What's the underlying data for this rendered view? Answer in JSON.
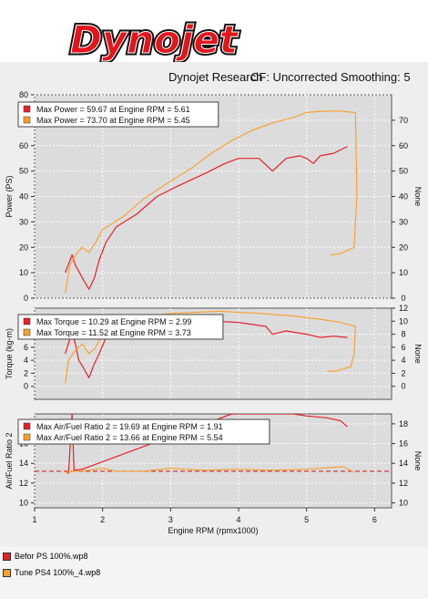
{
  "header": {
    "logo_text": "Dynojet",
    "subtitle_left": "Dynojet Research",
    "subtitle_right": "CF: Uncorrected Smoothing: 5"
  },
  "colors": {
    "red": "#e4202a",
    "orange": "#f7a233",
    "logo_red": "#e3151b"
  },
  "files": [
    {
      "label": "Befor PS 100%.wp8",
      "color": "#e4202a"
    },
    {
      "label": "Tune PS4 100%_4.wp8",
      "color": "#f7a233"
    }
  ],
  "x_axis": {
    "label": "Engine RPM (rpmx1000)",
    "ticks": [
      "1",
      "2",
      "3",
      "4",
      "5",
      "6"
    ],
    "range": [
      1,
      6.25
    ]
  },
  "chart_data": [
    {
      "type": "line",
      "panel": "power",
      "ylabel": "Power (PS)",
      "y2label": "None",
      "ylim": [
        0,
        80
      ],
      "yticks": [
        0,
        10,
        20,
        30,
        40,
        50,
        60,
        70,
        80
      ],
      "y2ticks": [
        0,
        10,
        20,
        30,
        40,
        50,
        60,
        70
      ],
      "legend": [
        "Max Power = 59.67 at Engine RPM = 5.61",
        "Max Power = 73.70 at Engine RPM = 5.45"
      ],
      "series": [
        {
          "color": "red",
          "points": [
            [
              1.45,
              10
            ],
            [
              1.55,
              17
            ],
            [
              1.6,
              13
            ],
            [
              1.7,
              8
            ],
            [
              1.8,
              3.5
            ],
            [
              1.88,
              8
            ],
            [
              1.95,
              15
            ],
            [
              2.05,
              22
            ],
            [
              2.2,
              28
            ],
            [
              2.5,
              33
            ],
            [
              2.8,
              40
            ],
            [
              3.1,
              44
            ],
            [
              3.5,
              49
            ],
            [
              3.8,
              53
            ],
            [
              4.0,
              55
            ],
            [
              4.3,
              55
            ],
            [
              4.5,
              50
            ],
            [
              4.7,
              55
            ],
            [
              4.9,
              56
            ],
            [
              5.0,
              55
            ],
            [
              5.1,
              53
            ],
            [
              5.2,
              56
            ],
            [
              5.4,
              57
            ],
            [
              5.6,
              59.7
            ]
          ]
        },
        {
          "color": "orange",
          "points": [
            [
              1.45,
              2
            ],
            [
              1.52,
              13
            ],
            [
              1.6,
              17
            ],
            [
              1.7,
              20
            ],
            [
              1.8,
              18
            ],
            [
              1.9,
              22
            ],
            [
              2.0,
              27
            ],
            [
              2.3,
              32
            ],
            [
              2.6,
              39
            ],
            [
              3.0,
              46
            ],
            [
              3.3,
              51
            ],
            [
              3.6,
              57
            ],
            [
              3.9,
              62
            ],
            [
              4.2,
              66
            ],
            [
              4.5,
              69
            ],
            [
              4.8,
              71
            ],
            [
              5.0,
              73
            ],
            [
              5.2,
              73.5
            ],
            [
              5.45,
              73.7
            ],
            [
              5.72,
              73
            ],
            [
              5.74,
              40
            ],
            [
              5.7,
              20
            ],
            [
              5.5,
              17.5
            ],
            [
              5.35,
              17
            ]
          ]
        }
      ]
    },
    {
      "type": "line",
      "panel": "torque",
      "ylabel": "Torque (kg-m)",
      "y2label": "None",
      "ylim": [
        -2,
        12
      ],
      "yticks": [
        0,
        2,
        4,
        6,
        8
      ],
      "y2ticks": [
        0,
        2,
        4,
        6,
        8,
        10,
        12
      ],
      "legend": [
        "Max Torque = 10.29 at Engine RPM = 2.99",
        "Max Torque = 11.52 at Engine RPM = 3.73"
      ],
      "series": [
        {
          "color": "red",
          "points": [
            [
              1.45,
              5
            ],
            [
              1.55,
              8.3
            ],
            [
              1.6,
              6.5
            ],
            [
              1.65,
              4
            ],
            [
              1.72,
              2.8
            ],
            [
              1.8,
              1.3
            ],
            [
              1.88,
              3.5
            ],
            [
              1.95,
              5
            ],
            [
              2.05,
              7.5
            ],
            [
              2.2,
              9.5
            ],
            [
              2.5,
              10
            ],
            [
              2.99,
              10.29
            ],
            [
              3.5,
              10.1
            ],
            [
              4.0,
              9.8
            ],
            [
              4.4,
              9.2
            ],
            [
              4.5,
              8
            ],
            [
              4.7,
              8.5
            ],
            [
              5.0,
              8
            ],
            [
              5.2,
              7.5
            ],
            [
              5.4,
              7.7
            ],
            [
              5.6,
              7.5
            ]
          ]
        },
        {
          "color": "orange",
          "points": [
            [
              1.45,
              0.5
            ],
            [
              1.5,
              4
            ],
            [
              1.6,
              5.5
            ],
            [
              1.7,
              6.5
            ],
            [
              1.8,
              5
            ],
            [
              1.9,
              6
            ],
            [
              2.0,
              8
            ],
            [
              2.2,
              9.5
            ],
            [
              2.5,
              10.5
            ],
            [
              3.0,
              11.2
            ],
            [
              3.73,
              11.52
            ],
            [
              4.3,
              11.2
            ],
            [
              4.8,
              10.8
            ],
            [
              5.2,
              10.3
            ],
            [
              5.5,
              9.8
            ],
            [
              5.72,
              9.2
            ],
            [
              5.7,
              5
            ],
            [
              5.65,
              3
            ],
            [
              5.45,
              2.4
            ],
            [
              5.3,
              2.3
            ]
          ]
        }
      ]
    },
    {
      "type": "line",
      "panel": "air_fuel",
      "ylabel": "Air/Fuel Ratio 2",
      "y2label": "None",
      "ylim": [
        9.5,
        19
      ],
      "yticks": [
        10,
        12,
        14,
        16,
        18
      ],
      "y2ticks": [
        10,
        12,
        14,
        16,
        18
      ],
      "reference_line": 13.2,
      "legend": [
        "Max Air/Fuel Ratio 2 = 19.69 at Engine RPM = 1.91",
        "Max Air/Fuel Ratio 2 = 13.66 at Engine RPM = 5.54"
      ],
      "series": [
        {
          "color": "red",
          "points": [
            [
              1.45,
              13.2
            ],
            [
              1.5,
              13
            ],
            [
              1.55,
              19
            ],
            [
              1.58,
              13.3
            ],
            [
              1.7,
              13.4
            ],
            [
              3.9,
              19
            ],
            [
              4.8,
              19
            ],
            [
              5.0,
              18.8
            ],
            [
              5.3,
              18.6
            ],
            [
              5.5,
              18.3
            ],
            [
              5.6,
              17.7
            ]
          ]
        },
        {
          "color": "orange",
          "points": [
            [
              1.45,
              13.1
            ],
            [
              1.6,
              13.2
            ],
            [
              1.8,
              13.3
            ],
            [
              2.0,
              13.5
            ],
            [
              2.2,
              13.2
            ],
            [
              2.6,
              13.2
            ],
            [
              3.0,
              13.5
            ],
            [
              3.5,
              13.3
            ],
            [
              4.0,
              13.4
            ],
            [
              4.5,
              13.3
            ],
            [
              5.0,
              13.4
            ],
            [
              5.54,
              13.66
            ],
            [
              5.7,
              13.1
            ]
          ]
        }
      ]
    }
  ]
}
